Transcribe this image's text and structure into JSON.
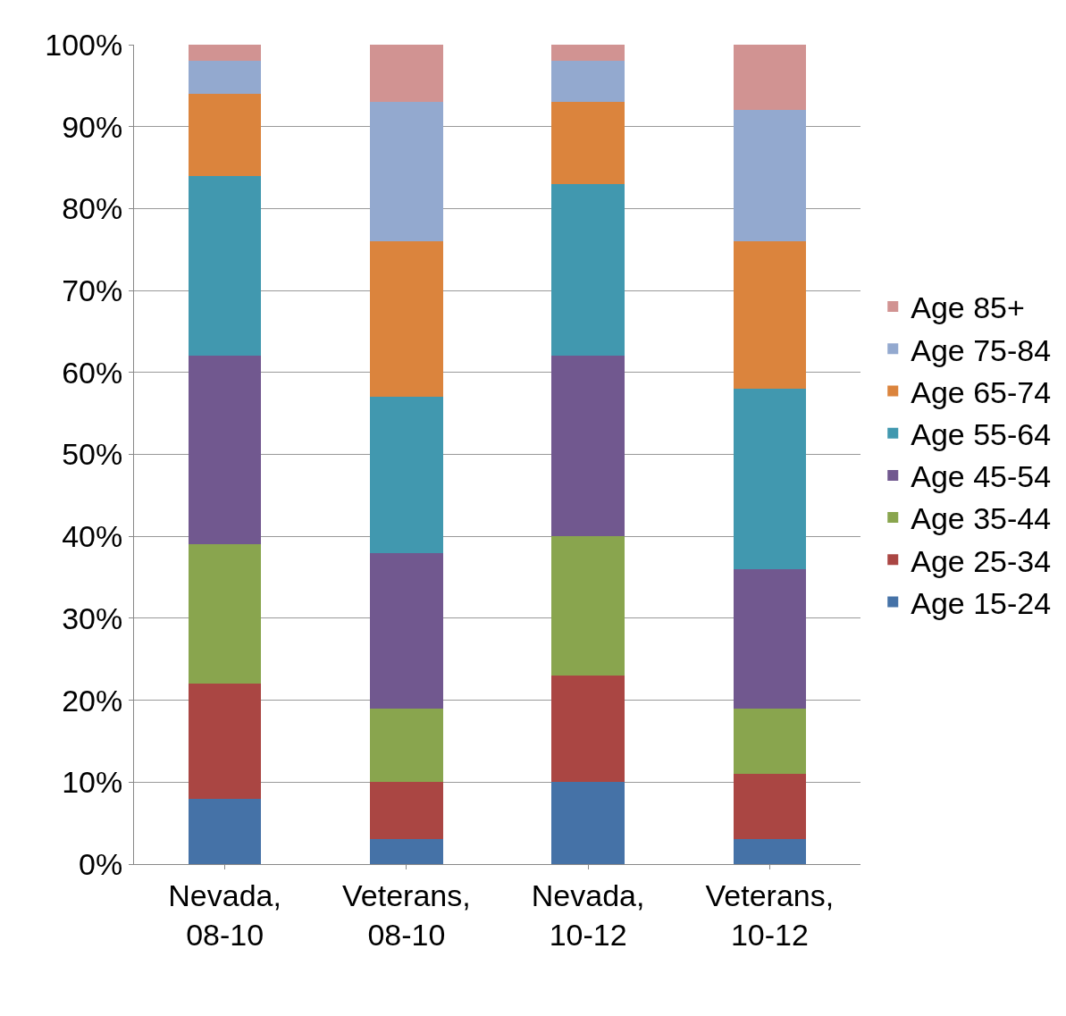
{
  "chart_data": {
    "type": "bar",
    "stacked": true,
    "categories": [
      "Nevada, 08-10",
      "Veterans, 08-10",
      "Nevada, 10-12",
      "Veterans, 10-12"
    ],
    "series": [
      {
        "name": "Age 15-24",
        "color": "#4572a7",
        "values": [
          8,
          3,
          10,
          3
        ]
      },
      {
        "name": "Age 25-34",
        "color": "#aa4643",
        "values": [
          14,
          7,
          13,
          8
        ]
      },
      {
        "name": "Age 35-44",
        "color": "#89a54e",
        "values": [
          17,
          9,
          17,
          8
        ]
      },
      {
        "name": "Age 45-54",
        "color": "#71588f",
        "values": [
          23,
          19,
          22,
          17
        ]
      },
      {
        "name": "Age 55-64",
        "color": "#4198af",
        "values": [
          22,
          19,
          21,
          22
        ]
      },
      {
        "name": "Age 65-74",
        "color": "#db843d",
        "values": [
          10,
          19,
          10,
          18
        ]
      },
      {
        "name": "Age 75-84",
        "color": "#93a9cf",
        "values": [
          4,
          17,
          5,
          16
        ]
      },
      {
        "name": "Age 85+",
        "color": "#d19392",
        "values": [
          2,
          7,
          2,
          8
        ]
      }
    ],
    "ylim": [
      0,
      100
    ],
    "yticks": [
      {
        "value": 0,
        "label": "0%"
      },
      {
        "value": 10,
        "label": "10%"
      },
      {
        "value": 20,
        "label": "20%"
      },
      {
        "value": 30,
        "label": "30%"
      },
      {
        "value": 40,
        "label": "40%"
      },
      {
        "value": 50,
        "label": "50%"
      },
      {
        "value": 60,
        "label": "60%"
      },
      {
        "value": 70,
        "label": "70%"
      },
      {
        "value": 80,
        "label": "80%"
      },
      {
        "value": 90,
        "label": "90%"
      },
      {
        "value": 100,
        "label": "100%"
      }
    ],
    "grid": "y",
    "legend": "right"
  }
}
